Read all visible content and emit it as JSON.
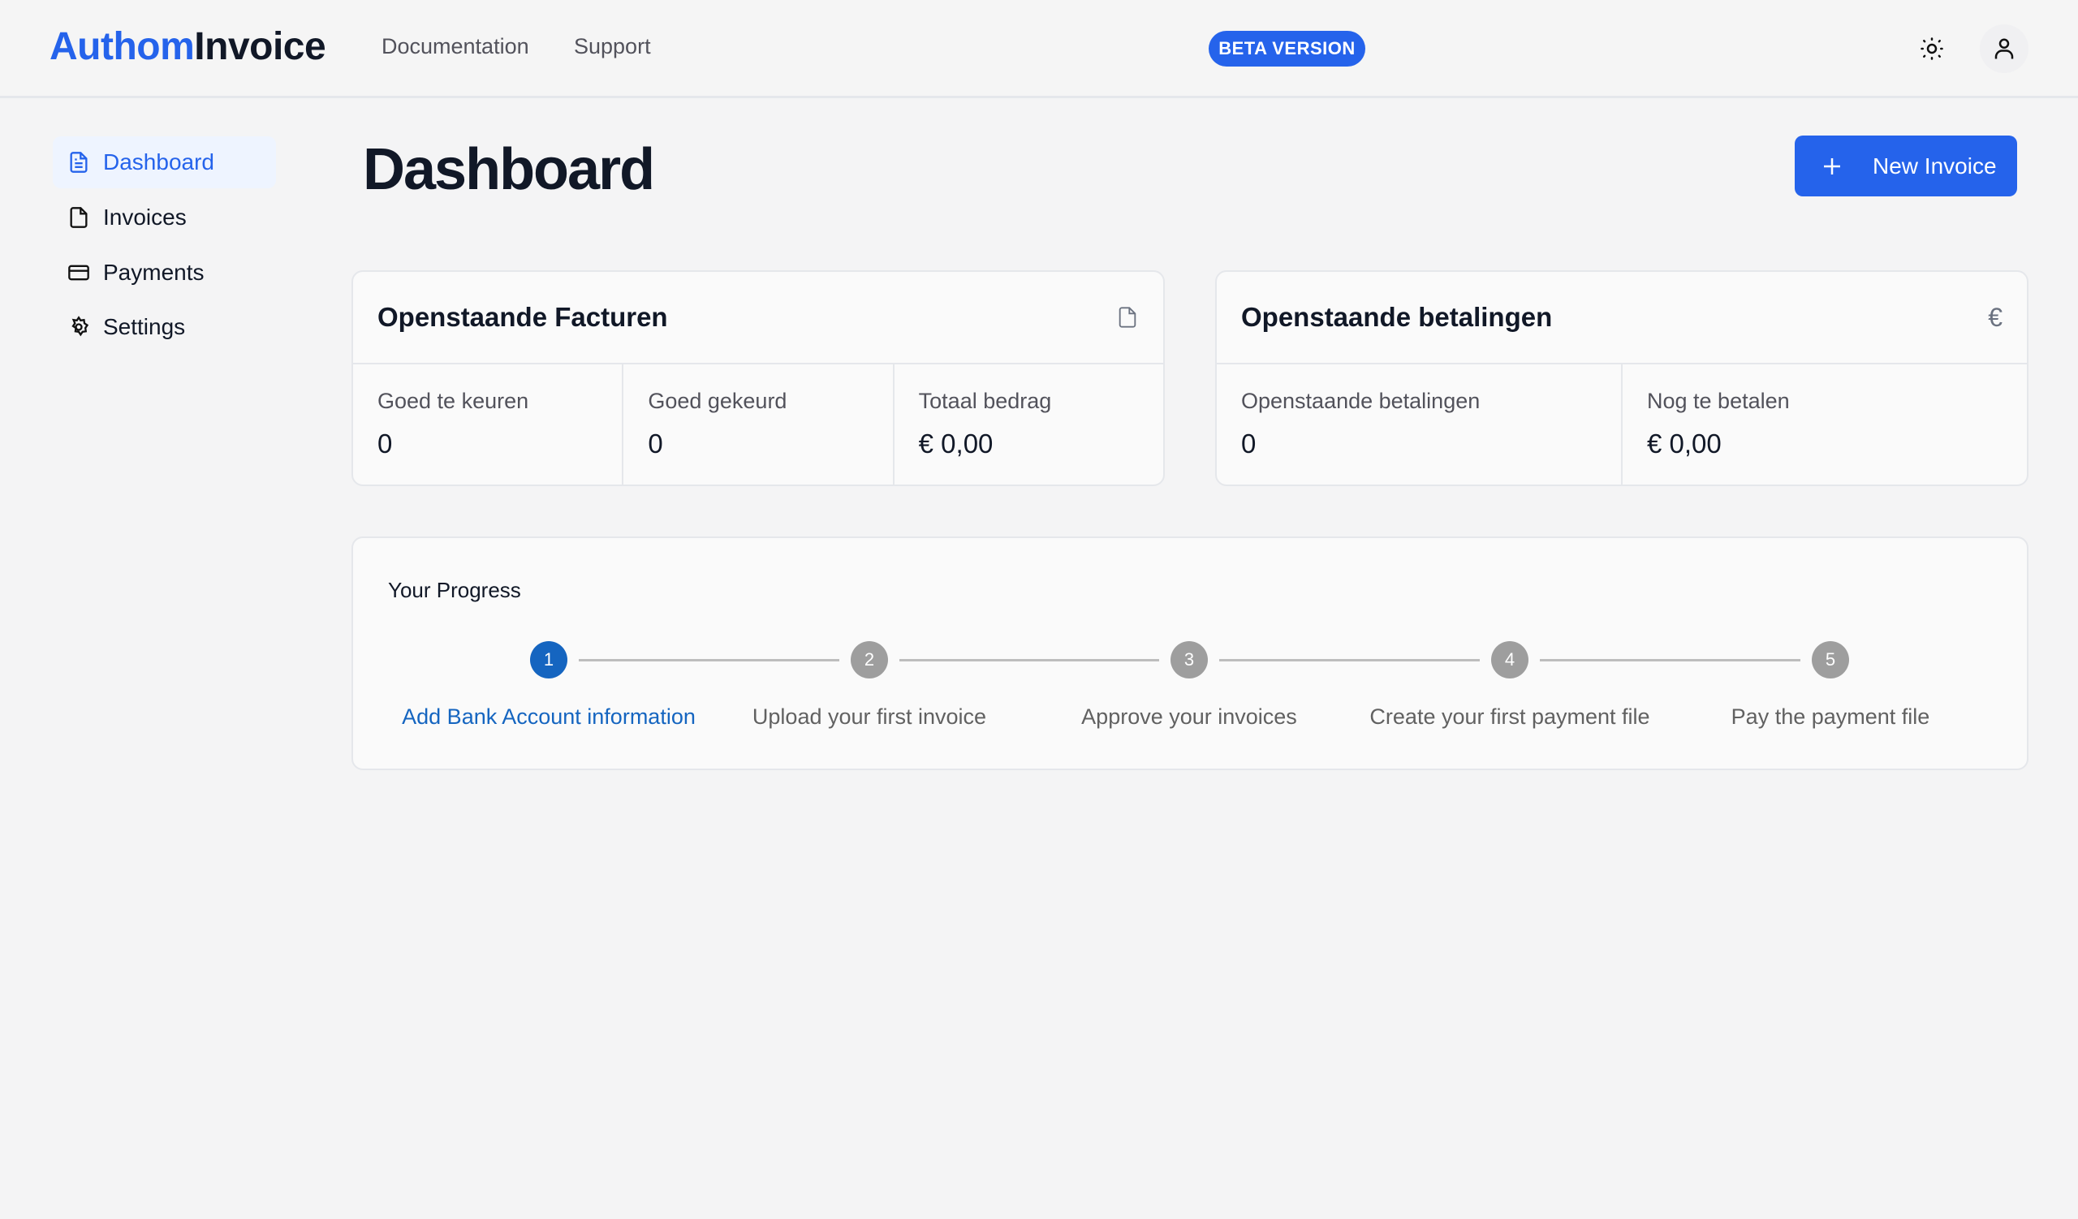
{
  "header": {
    "logo_part1": "Authom",
    "logo_part2": "Invoice",
    "nav": [
      "Documentation",
      "Support"
    ],
    "badge": "BETA VERSION",
    "icons": [
      "sun-icon",
      "user-icon"
    ]
  },
  "sidebar": {
    "items": [
      {
        "label": "Dashboard",
        "icon": "document-text-icon",
        "active": true
      },
      {
        "label": "Invoices",
        "icon": "document-icon"
      },
      {
        "label": "Payments",
        "icon": "credit-card-icon"
      },
      {
        "label": "Settings",
        "icon": "gear-icon"
      }
    ]
  },
  "main": {
    "title": "Dashboard",
    "new_invoice": "New Invoice",
    "cards": [
      {
        "title": "Openstaande Facturen",
        "icon": "document-icon",
        "stats": [
          {
            "label": "Goed te keuren",
            "value": "0"
          },
          {
            "label": "Goed gekeurd",
            "value": "0"
          },
          {
            "label": "Totaal bedrag",
            "value": "€ 0,00"
          }
        ]
      },
      {
        "title": "Openstaande betalingen",
        "icon": "euro-icon",
        "stats": [
          {
            "label": "Openstaande betalingen",
            "value": "0"
          },
          {
            "label": "Nog te betalen",
            "value": "€ 0,00"
          }
        ]
      }
    ],
    "progress": {
      "title": "Your Progress",
      "current_step": 1,
      "steps": [
        {
          "n": "1",
          "label": "Add Bank Account information"
        },
        {
          "n": "2",
          "label": "Upload your first invoice"
        },
        {
          "n": "3",
          "label": "Approve your invoices"
        },
        {
          "n": "4",
          "label": "Create your first payment file"
        },
        {
          "n": "5",
          "label": "Pay the payment file"
        }
      ]
    }
  },
  "colors": {
    "accent": "#2563eb",
    "step_active": "#1565c0",
    "step_inactive": "#9e9e9e"
  }
}
